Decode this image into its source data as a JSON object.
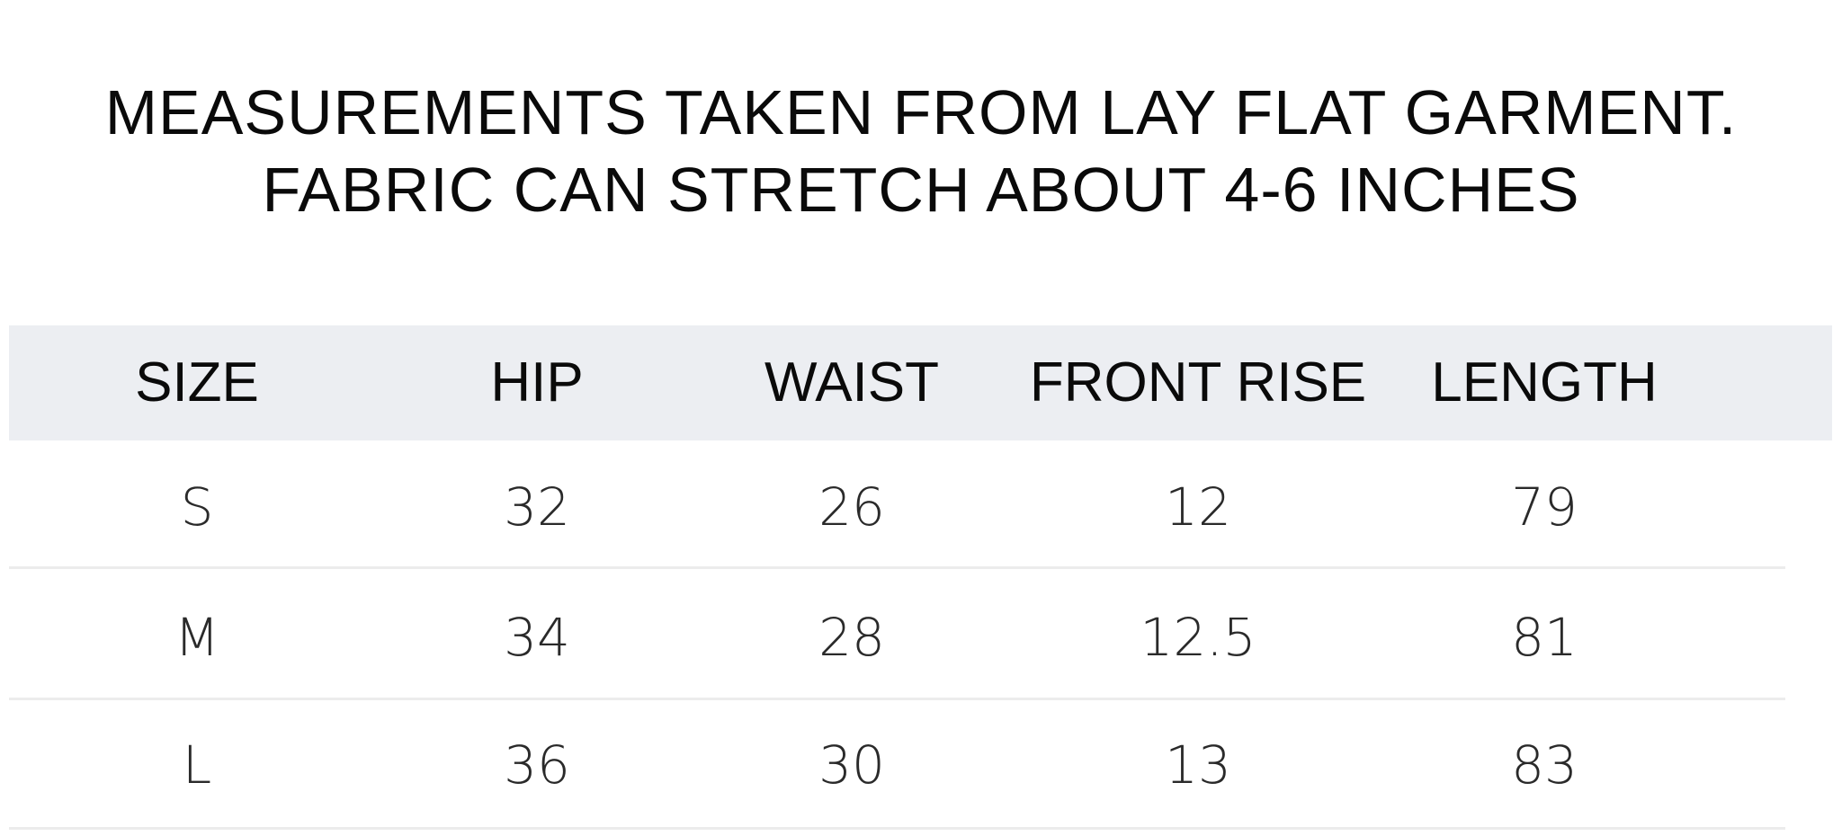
{
  "title": {
    "line1": "MEASUREMENTS TAKEN FROM LAY FLAT GARMENT.",
    "line2": "FABRIC CAN STRETCH ABOUT 4-6 INCHES"
  },
  "table": {
    "headers": [
      "SIZE",
      "HIP",
      "WAIST",
      "FRONT RISE",
      "LENGTH"
    ],
    "rows": [
      [
        "S",
        "32",
        "26",
        "12",
        "79"
      ],
      [
        "M",
        "34",
        "28",
        "12.5",
        "81"
      ],
      [
        "L",
        "36",
        "30",
        "13",
        "83"
      ]
    ]
  },
  "colors": {
    "header_bg": "#eceef2",
    "text": "#0a0a0a"
  }
}
